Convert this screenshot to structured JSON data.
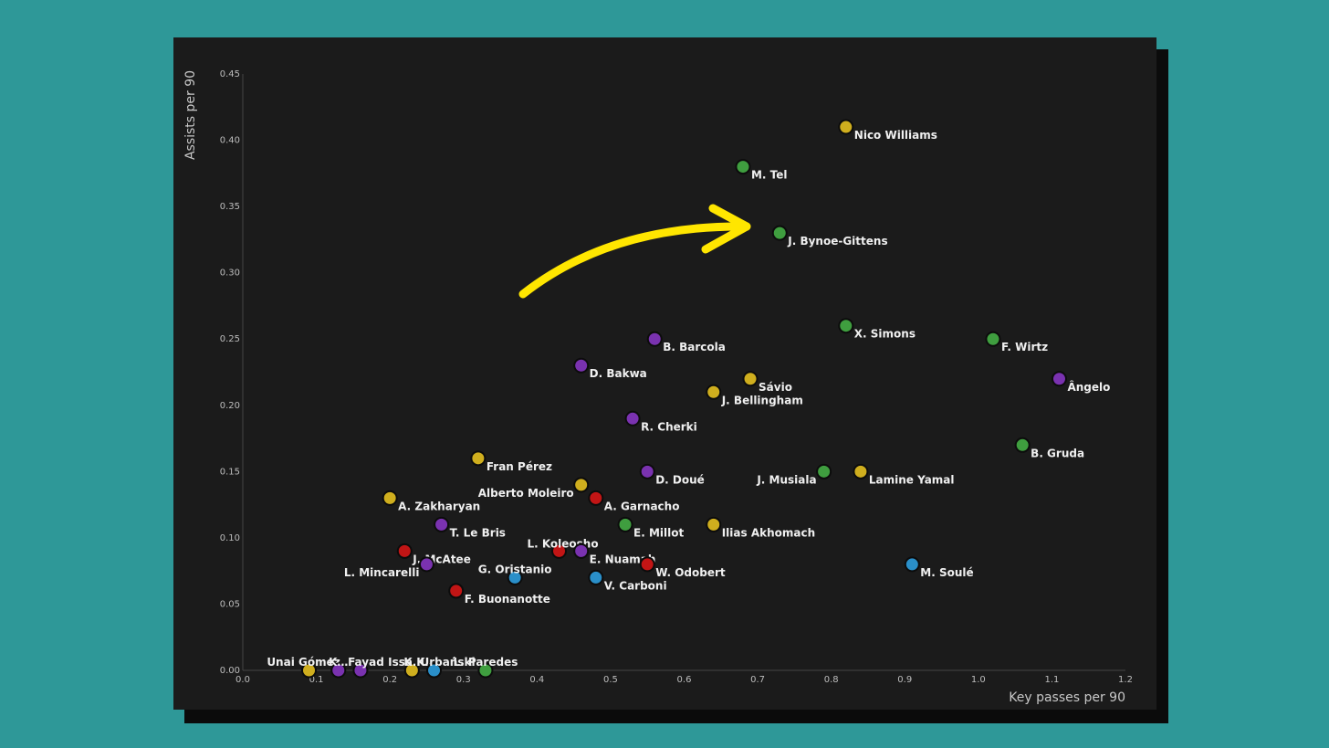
{
  "chart_data": {
    "type": "scatter",
    "xlabel": "Key passes per 90",
    "ylabel": "Assists per 90",
    "xlim": [
      0,
      1.2
    ],
    "ylim": [
      0,
      0.45
    ],
    "x_ticks": [
      "0.0",
      "0.1",
      "0.2",
      "0.3",
      "0.4",
      "0.5",
      "0.6",
      "0.7",
      "0.8",
      "0.9",
      "1.0",
      "1.1",
      "1.2"
    ],
    "y_ticks": [
      "0.00",
      "0.05",
      "0.10",
      "0.15",
      "0.20",
      "0.25",
      "0.30",
      "0.35",
      "0.40",
      "0.45"
    ],
    "grid": false,
    "colors": {
      "yellow": "#cfae1e",
      "green": "#3f9e3f",
      "purple": "#7a32b0",
      "red": "#c21515",
      "blue": "#2a8fc9"
    },
    "points": [
      {
        "name": "Nico Williams",
        "x": 0.82,
        "y": 0.41,
        "color": "yellow"
      },
      {
        "name": "M. Tel",
        "x": 0.68,
        "y": 0.38,
        "color": "green"
      },
      {
        "name": "J. Bynoe-Gittens",
        "x": 0.73,
        "y": 0.33,
        "color": "green"
      },
      {
        "name": "X. Simons",
        "x": 0.82,
        "y": 0.26,
        "color": "green"
      },
      {
        "name": "F. Wirtz",
        "x": 1.02,
        "y": 0.25,
        "color": "green"
      },
      {
        "name": "B. Barcola",
        "x": 0.56,
        "y": 0.25,
        "color": "purple"
      },
      {
        "name": "D. Bakwa",
        "x": 0.46,
        "y": 0.23,
        "color": "purple"
      },
      {
        "name": "Sávio",
        "x": 0.69,
        "y": 0.22,
        "color": "yellow"
      },
      {
        "name": "Ângelo",
        "x": 1.11,
        "y": 0.22,
        "color": "purple"
      },
      {
        "name": "J. Bellingham",
        "x": 0.64,
        "y": 0.21,
        "color": "yellow"
      },
      {
        "name": "R. Cherki",
        "x": 0.53,
        "y": 0.19,
        "color": "purple"
      },
      {
        "name": "B. Gruda",
        "x": 1.06,
        "y": 0.17,
        "color": "green"
      },
      {
        "name": "Fran Pérez",
        "x": 0.32,
        "y": 0.16,
        "color": "yellow"
      },
      {
        "name": "D. Doué",
        "x": 0.55,
        "y": 0.15,
        "color": "purple"
      },
      {
        "name": "J. Musiala",
        "x": 0.79,
        "y": 0.15,
        "color": "green"
      },
      {
        "name": "Lamine Yamal",
        "x": 0.84,
        "y": 0.15,
        "color": "yellow"
      },
      {
        "name": "Alberto Moleiro",
        "x": 0.46,
        "y": 0.14,
        "color": "yellow"
      },
      {
        "name": "A. Garnacho",
        "x": 0.48,
        "y": 0.13,
        "color": "red"
      },
      {
        "name": "A. Zakharyan",
        "x": 0.2,
        "y": 0.13,
        "color": "yellow"
      },
      {
        "name": "T. Le Bris",
        "x": 0.27,
        "y": 0.11,
        "color": "purple"
      },
      {
        "name": "E. Millot",
        "x": 0.52,
        "y": 0.11,
        "color": "green"
      },
      {
        "name": "Ilias Akhomach",
        "x": 0.64,
        "y": 0.11,
        "color": "yellow"
      },
      {
        "name": "L. Koleosho",
        "x": 0.43,
        "y": 0.09,
        "color": "red"
      },
      {
        "name": "J. McAtee",
        "x": 0.22,
        "y": 0.09,
        "color": "red"
      },
      {
        "name": "E. Nuamah",
        "x": 0.46,
        "y": 0.09,
        "color": "purple"
      },
      {
        "name": "L. Mincarelli",
        "x": 0.25,
        "y": 0.08,
        "color": "purple"
      },
      {
        "name": "W. Odobert",
        "x": 0.55,
        "y": 0.08,
        "color": "red"
      },
      {
        "name": "M. Soulé",
        "x": 0.91,
        "y": 0.08,
        "color": "blue"
      },
      {
        "name": "G. Oristanio",
        "x": 0.37,
        "y": 0.07,
        "color": "blue"
      },
      {
        "name": "V. Carboni",
        "x": 0.48,
        "y": 0.07,
        "color": "blue"
      },
      {
        "name": "F. Buonanotte",
        "x": 0.29,
        "y": 0.06,
        "color": "red"
      },
      {
        "name": "Unai Gómez",
        "x": 0.09,
        "y": 0.0,
        "color": "yellow"
      },
      {
        "name": "K…",
        "x": 0.13,
        "y": 0.0,
        "color": "purple"
      },
      {
        "name": "Fayad",
        "x": 0.16,
        "y": 0.0,
        "color": "purple"
      },
      {
        "name": "Issa K…",
        "x": 0.23,
        "y": 0.0,
        "color": "yellow"
      },
      {
        "name": "K. Urbański",
        "x": 0.26,
        "y": 0.0,
        "color": "blue"
      },
      {
        "name": "L. Paredes",
        "x": 0.33,
        "y": 0.0,
        "color": "green"
      }
    ]
  }
}
